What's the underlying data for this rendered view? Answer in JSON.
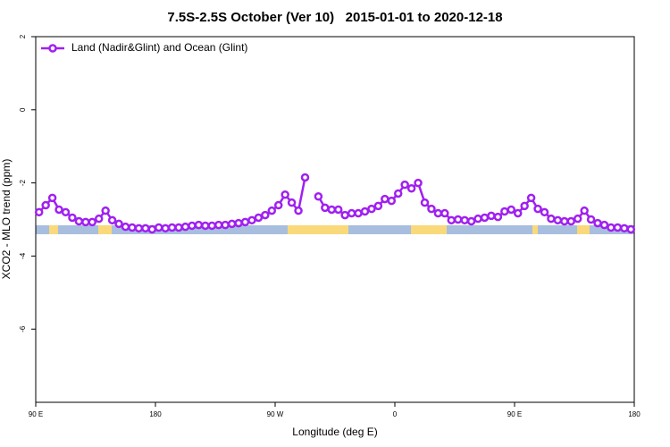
{
  "chart_data": {
    "type": "line",
    "title": "7.5S-2.5S October (Ver 10)   2015-01-01 to 2020-12-18",
    "x_label": "Longitude (deg E)",
    "y_label": "XCO2 - MLO trend (ppm)",
    "xlim": [
      90,
      540
    ],
    "xticks": [
      {
        "value": 90,
        "label": "90 E"
      },
      {
        "value": 180,
        "label": "180"
      },
      {
        "value": 270,
        "label": "90 W"
      },
      {
        "value": 360,
        "label": "0"
      },
      {
        "value": 450,
        "label": "90 E"
      },
      {
        "value": 540,
        "label": "180"
      }
    ],
    "ylim": [
      -8,
      2
    ],
    "yticks": [
      2,
      0,
      -2,
      -4,
      -6
    ],
    "x": [
      92.5,
      97.5,
      102.5,
      107.5,
      112.5,
      117.5,
      122.5,
      127.5,
      132.5,
      137.5,
      142.5,
      147.5,
      152.5,
      157.5,
      162.5,
      167.5,
      172.5,
      177.5,
      182.5,
      187.5,
      192.5,
      197.5,
      202.5,
      207.5,
      212.5,
      217.5,
      222.5,
      227.5,
      232.5,
      237.5,
      242.5,
      247.5,
      252.5,
      257.5,
      262.5,
      267.5,
      272.5,
      277.5,
      282.5,
      287.5,
      292.5,
      297.5,
      302.5,
      307.5,
      312.5,
      317.5,
      322.5,
      327.5,
      332.5,
      337.5,
      342.5,
      347.5,
      352.5,
      357.5,
      362.5,
      367.5,
      372.5,
      377.5,
      382.5,
      387.5,
      392.5,
      397.5,
      402.5,
      407.5,
      412.5,
      417.5,
      422.5,
      427.5,
      432.5,
      437.5,
      442.5,
      447.5,
      452.5,
      457.5,
      462.5,
      467.5,
      472.5,
      477.5,
      482.5,
      487.5,
      492.5,
      497.5,
      502.5,
      507.5,
      512.5,
      517.5,
      522.5,
      527.5,
      532.5,
      537.5
    ],
    "series": [
      {
        "name": "Land (Nadir&Glint) and Ocean (Glint)",
        "color": "#a020f0",
        "values": [
          -2.8,
          -2.61,
          -2.41,
          -2.73,
          -2.8,
          -2.95,
          -3.05,
          -3.07,
          -3.07,
          -2.98,
          -2.76,
          -3.02,
          -3.12,
          -3.2,
          -3.22,
          -3.24,
          -3.24,
          -3.27,
          -3.22,
          -3.24,
          -3.22,
          -3.22,
          -3.2,
          -3.17,
          -3.15,
          -3.17,
          -3.17,
          -3.15,
          -3.15,
          -3.12,
          -3.1,
          -3.07,
          -3.02,
          -2.95,
          -2.88,
          -2.76,
          -2.61,
          -2.32,
          -2.54,
          -2.76,
          -1.85,
          null,
          -2.37,
          -2.68,
          -2.73,
          -2.73,
          -2.88,
          -2.83,
          -2.83,
          -2.78,
          -2.71,
          -2.63,
          -2.44,
          -2.49,
          -2.29,
          -2.05,
          -2.15,
          -2.0,
          -2.54,
          -2.71,
          -2.83,
          -2.83,
          -3.02,
          -3.0,
          -3.02,
          -3.05,
          -2.98,
          -2.95,
          -2.9,
          -2.93,
          -2.78,
          -2.73,
          -2.83,
          -2.63,
          -2.41,
          -2.71,
          -2.8,
          -2.98,
          -3.02,
          -3.05,
          -3.05,
          -2.98,
          -2.76,
          -3.0,
          -3.1,
          -3.15,
          -3.22,
          -3.22,
          -3.24,
          -3.27
        ]
      }
    ],
    "legend": "top-left"
  }
}
